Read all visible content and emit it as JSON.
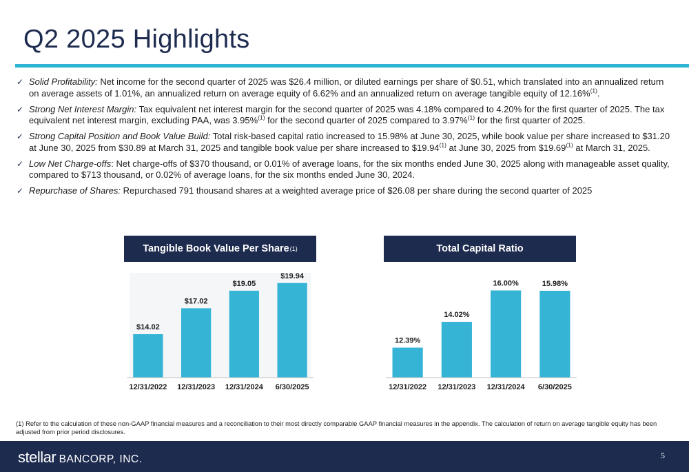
{
  "page": {
    "title": "Q2 2025 Highlights",
    "page_number": "5",
    "footnote": "(1) Refer to the calculation of these non-GAAP financial measures and a reconciliation to their most directly comparable GAAP financial measures in the appendix. The calculation of return on average tangible equity has been adjusted from prior period disclosures."
  },
  "bullets": [
    {
      "lead": "Solid Profitability:",
      "segments": [
        {
          "text": " Net income for the second quarter of 2025 was $26.4 million, or diluted earnings per share of $0.51, which translated into an annualized return on average assets of 1.01%, an annualized return on average equity of 6.62% and an annualized return on average tangible equity of 12.16%"
        },
        {
          "sup": "(1)"
        },
        {
          "text": "."
        }
      ]
    },
    {
      "lead": "Strong Net Interest Margin:",
      "segments": [
        {
          "text": " Tax equivalent net interest margin for the second quarter of 2025 was 4.18% compared to 4.20% for the first quarter of 2025. The tax equivalent net interest margin, excluding PAA, was 3.95%"
        },
        {
          "sup": "(1)"
        },
        {
          "text": " for the second quarter of 2025 compared to 3.97%"
        },
        {
          "sup": "(1)"
        },
        {
          "text": " for the first quarter of 2025."
        }
      ]
    },
    {
      "lead": "Strong Capital Position and Book Value Build:",
      "segments": [
        {
          "text": " Total risk-based capital ratio increased to 15.98% at June 30, 2025, while book value per share increased to $31.20 at June 30, 2025 from $30.89 at March 31, 2025 and tangible book value per share increased to $19.94"
        },
        {
          "sup": "(1)"
        },
        {
          "text": " at June 30, 2025 from $19.69"
        },
        {
          "sup": "(1)"
        },
        {
          "text": " at March 31, 2025."
        }
      ]
    },
    {
      "lead": "Low Net Charge-offs",
      "segments": [
        {
          "text": ": Net charge-offs of $370 thousand, or 0.01% of average loans, for the six months ended June 30, 2025 along with manageable asset quality, compared to $713 thousand, or 0.02% of average loans, for the six months ended June 30, 2024."
        }
      ]
    },
    {
      "lead": "Repurchase of Shares:",
      "segments": [
        {
          "text": " Repurchased 791 thousand shares at a weighted average price of $26.08 per share during the second quarter of 2025"
        }
      ]
    }
  ],
  "charts_header": {
    "tbv_title": "Tangible Book Value Per Share",
    "tbv_sup": "(1)",
    "tcr_title": "Total Capital Ratio"
  },
  "footer": {
    "logo_word1": "stellar",
    "logo_word2": "BANCORP, INC."
  },
  "colors": {
    "navy": "#1d2b4f",
    "accent": "#2db4d3",
    "bar": "#35b4d6"
  },
  "chart_data": [
    {
      "type": "bar",
      "title": "Tangible Book Value Per Share",
      "categories": [
        "12/31/2022",
        "12/31/2023",
        "12/31/2024",
        "6/30/2025"
      ],
      "values": [
        14.02,
        17.02,
        19.05,
        19.94
      ],
      "labels": [
        "$14.02",
        "$17.02",
        "$19.05",
        "$19.94"
      ],
      "ylim": [
        9,
        20
      ],
      "grid": false,
      "legend": "none"
    },
    {
      "type": "bar",
      "title": "Total Capital Ratio",
      "categories": [
        "12/31/2022",
        "12/31/2023",
        "12/31/2024",
        "6/30/2025"
      ],
      "values": [
        12.39,
        14.02,
        16.0,
        15.98
      ],
      "labels": [
        "12.39%",
        "14.02%",
        "16.00%",
        "15.98%"
      ],
      "ylim": [
        10.5,
        16.5
      ],
      "grid": false,
      "legend": "none"
    }
  ]
}
